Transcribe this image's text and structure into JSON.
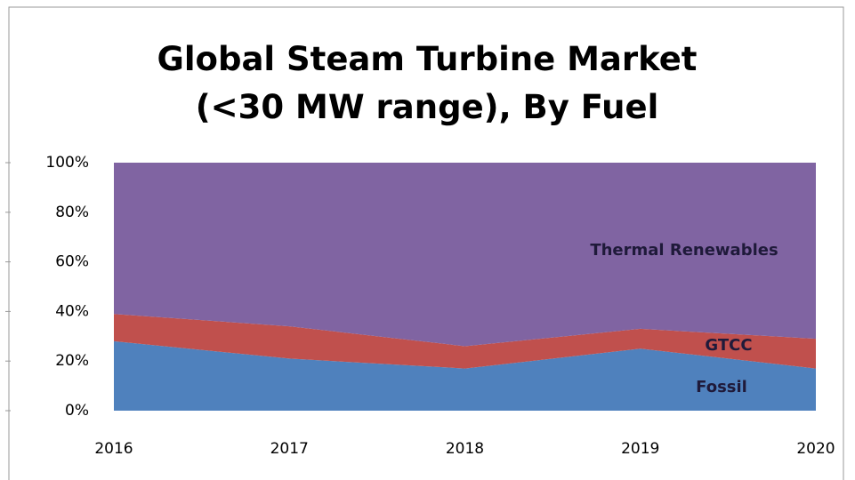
{
  "chart_data": {
    "type": "stacked_area",
    "title": "Global Steam Turbine Market (<30 MW range), By Fuel",
    "categories": [
      "2016",
      "2017",
      "2018",
      "2019",
      "2020"
    ],
    "series": [
      {
        "name": "Fossil",
        "color": "#4f81bd",
        "values": [
          28,
          21,
          17,
          25,
          17
        ]
      },
      {
        "name": "GTCC",
        "color": "#c0504d",
        "values": [
          11,
          13,
          9,
          8,
          12
        ]
      },
      {
        "name": "Thermal Renewables",
        "color": "#8064a2",
        "values": [
          61,
          66,
          74,
          67,
          71
        ]
      }
    ],
    "ylim": [
      0,
      100
    ],
    "yticks": [
      {
        "value": 0,
        "label": "0%"
      },
      {
        "value": 20,
        "label": "20%"
      },
      {
        "value": 40,
        "label": "40%"
      },
      {
        "value": 60,
        "label": "60%"
      },
      {
        "value": 80,
        "label": "80%"
      },
      {
        "value": 100,
        "label": "100%"
      }
    ],
    "grid": false
  }
}
